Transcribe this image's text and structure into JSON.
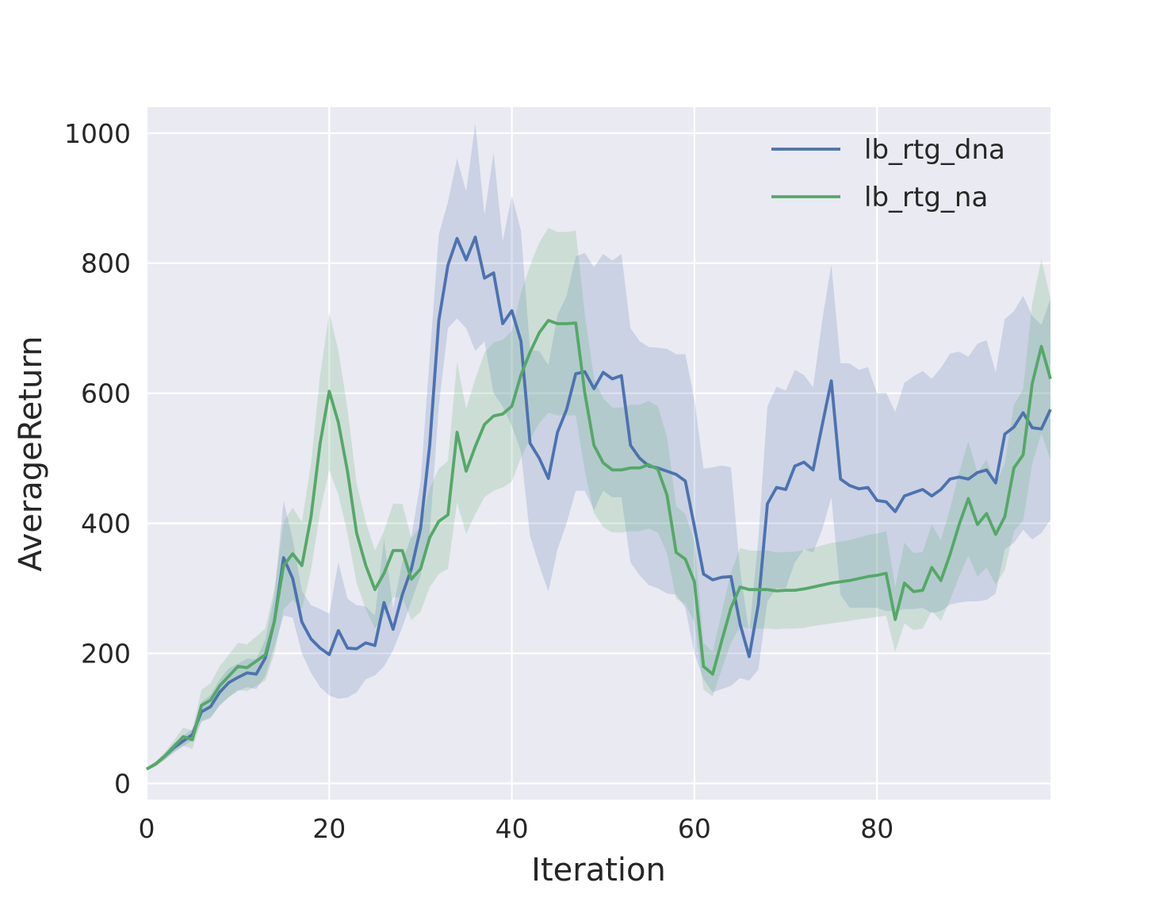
{
  "chart_data": {
    "type": "line",
    "title": "",
    "xlabel": "Iteration",
    "ylabel": "AverageReturn",
    "xlim": [
      0,
      99
    ],
    "ylim": [
      -25,
      1040
    ],
    "xticks": [
      0,
      20,
      40,
      60,
      80
    ],
    "yticks": [
      0,
      200,
      400,
      600,
      800,
      1000
    ],
    "grid": true,
    "legend_position": "top-right",
    "background_color": "#EAEAF2",
    "series": [
      {
        "name": "lb_rtg_dna",
        "color": "#4C72B0",
        "x": [
          0,
          1,
          2,
          3,
          4,
          5,
          6,
          7,
          8,
          9,
          10,
          11,
          12,
          13,
          14,
          15,
          16,
          17,
          18,
          19,
          20,
          21,
          22,
          23,
          24,
          25,
          26,
          27,
          28,
          29,
          30,
          31,
          32,
          33,
          34,
          35,
          36,
          37,
          38,
          39,
          40,
          41,
          42,
          43,
          44,
          45,
          46,
          47,
          48,
          49,
          50,
          51,
          52,
          53,
          54,
          55,
          56,
          57,
          58,
          59,
          60,
          61,
          62,
          63,
          64,
          65,
          66,
          67,
          68,
          69,
          70,
          71,
          72,
          73,
          74,
          75,
          76,
          77,
          78,
          79,
          80,
          81,
          82,
          83,
          84,
          85,
          86,
          87,
          88,
          89,
          90,
          91,
          92,
          93,
          94,
          95,
          96,
          97,
          98,
          99
        ],
        "mean": [
          22,
          30,
          42,
          55,
          65,
          75,
          110,
          118,
          140,
          155,
          163,
          170,
          168,
          193,
          250,
          347,
          315,
          248,
          222,
          208,
          198,
          235,
          208,
          207,
          216,
          212,
          278,
          237,
          290,
          330,
          392,
          520,
          712,
          797,
          838,
          805,
          840,
          777,
          785,
          707,
          727,
          680,
          523,
          500,
          469,
          540,
          575,
          630,
          633,
          607,
          632,
          622,
          627,
          520,
          500,
          488,
          485,
          480,
          475,
          465,
          395,
          322,
          313,
          317,
          318,
          245,
          195,
          275,
          430,
          455,
          452,
          488,
          494,
          482,
          551,
          619,
          468,
          458,
          453,
          455,
          435,
          433,
          418,
          442,
          447,
          452,
          442,
          452,
          468,
          471,
          468,
          478,
          482,
          462,
          537,
          548,
          570,
          547,
          545,
          575
        ],
        "lower": [
          20,
          27,
          37,
          48,
          57,
          66,
          95,
          100,
          120,
          133,
          142,
          148,
          145,
          165,
          210,
          258,
          255,
          200,
          170,
          148,
          135,
          130,
          132,
          140,
          160,
          166,
          180,
          205,
          240,
          280,
          320,
          385,
          580,
          700,
          715,
          700,
          665,
          680,
          600,
          580,
          550,
          510,
          380,
          335,
          295,
          360,
          400,
          450,
          450,
          420,
          450,
          440,
          440,
          340,
          320,
          305,
          300,
          292,
          290,
          270,
          200,
          160,
          140,
          145,
          150,
          162,
          158,
          175,
          280,
          300,
          300,
          340,
          360,
          355,
          390,
          440,
          290,
          270,
          270,
          270,
          270,
          265,
          265,
          268,
          268,
          270,
          262,
          265,
          275,
          278,
          280,
          280,
          282,
          292,
          360,
          370,
          390,
          375,
          385,
          405
        ],
        "upper": [
          24,
          33,
          47,
          62,
          73,
          84,
          125,
          136,
          160,
          177,
          184,
          192,
          191,
          221,
          290,
          435,
          375,
          296,
          274,
          268,
          261,
          340,
          284,
          274,
          272,
          258,
          376,
          269,
          340,
          380,
          464,
          655,
          844,
          894,
          961,
          910,
          1015,
          874,
          970,
          834,
          904,
          850,
          666,
          665,
          643,
          720,
          750,
          810,
          816,
          794,
          814,
          804,
          814,
          700,
          680,
          671,
          670,
          668,
          660,
          660,
          590,
          484,
          486,
          489,
          486,
          328,
          232,
          375,
          580,
          610,
          604,
          636,
          628,
          609,
          712,
          798,
          646,
          646,
          636,
          640,
          600,
          601,
          571,
          616,
          626,
          634,
          622,
          639,
          661,
          664,
          656,
          676,
          682,
          632,
          714,
          726,
          750,
          719,
          705,
          745
        ]
      },
      {
        "name": "lb_rtg_na",
        "color": "#55A868",
        "x": [
          0,
          1,
          2,
          3,
          4,
          5,
          6,
          7,
          8,
          9,
          10,
          11,
          12,
          13,
          14,
          15,
          16,
          17,
          18,
          19,
          20,
          21,
          22,
          23,
          24,
          25,
          26,
          27,
          28,
          29,
          30,
          31,
          32,
          33,
          34,
          35,
          36,
          37,
          38,
          39,
          40,
          41,
          42,
          43,
          44,
          45,
          46,
          47,
          48,
          49,
          50,
          51,
          52,
          53,
          54,
          55,
          56,
          57,
          58,
          59,
          60,
          61,
          62,
          63,
          64,
          65,
          66,
          67,
          68,
          69,
          70,
          71,
          72,
          73,
          74,
          75,
          76,
          77,
          78,
          79,
          80,
          81,
          82,
          83,
          84,
          85,
          86,
          87,
          88,
          89,
          90,
          91,
          92,
          93,
          94,
          95,
          96,
          97,
          98,
          99
        ],
        "mean": [
          22,
          30,
          42,
          57,
          72,
          67,
          120,
          128,
          150,
          165,
          180,
          178,
          188,
          198,
          250,
          335,
          353,
          335,
          410,
          523,
          603,
          555,
          480,
          385,
          335,
          298,
          323,
          358,
          358,
          314,
          330,
          378,
          403,
          413,
          540,
          480,
          518,
          552,
          565,
          568,
          580,
          628,
          663,
          693,
          712,
          707,
          707,
          708,
          600,
          520,
          493,
          482,
          482,
          485,
          485,
          490,
          483,
          443,
          355,
          345,
          310,
          180,
          168,
          220,
          270,
          302,
          298,
          298,
          298,
          296,
          297,
          297,
          299,
          302,
          305,
          308,
          310,
          312,
          315,
          318,
          320,
          323,
          252,
          308,
          295,
          297,
          332,
          312,
          352,
          398,
          438,
          398,
          415,
          383,
          410,
          485,
          505,
          615,
          672,
          622
        ],
        "lower": [
          20,
          26,
          36,
          48,
          58,
          53,
          96,
          102,
          120,
          132,
          144,
          142,
          150,
          158,
          200,
          268,
          282,
          268,
          328,
          418,
          482,
          444,
          384,
          308,
          268,
          238,
          258,
          286,
          286,
          251,
          264,
          302,
          322,
          330,
          432,
          384,
          414,
          440,
          450,
          455,
          464,
          500,
          530,
          554,
          570,
          566,
          566,
          566,
          480,
          416,
          394,
          386,
          386,
          388,
          388,
          392,
          386,
          354,
          284,
          276,
          248,
          144,
          134,
          176,
          216,
          242,
          238,
          238,
          238,
          237,
          238,
          238,
          239,
          242,
          244,
          246,
          248,
          250,
          252,
          254,
          256,
          258,
          202,
          246,
          236,
          238,
          265,
          250,
          282,
          318,
          350,
          318,
          332,
          306,
          328,
          388,
          404,
          492,
          538,
          498
        ],
        "upper": [
          24,
          34,
          48,
          66,
          86,
          81,
          144,
          154,
          180,
          198,
          216,
          214,
          226,
          238,
          300,
          402,
          424,
          402,
          492,
          628,
          724,
          666,
          576,
          462,
          402,
          358,
          388,
          430,
          430,
          377,
          396,
          454,
          484,
          496,
          648,
          576,
          622,
          662,
          678,
          682,
          696,
          754,
          796,
          832,
          854,
          848,
          848,
          850,
          720,
          624,
          592,
          578,
          578,
          582,
          582,
          588,
          580,
          532,
          426,
          414,
          372,
          216,
          202,
          264,
          324,
          362,
          358,
          358,
          358,
          355,
          356,
          356,
          359,
          362,
          366,
          370,
          372,
          374,
          378,
          382,
          384,
          388,
          302,
          370,
          354,
          356,
          398,
          374,
          422,
          478,
          526,
          478,
          498,
          460,
          492,
          582,
          606,
          738,
          806,
          746
        ]
      }
    ]
  }
}
